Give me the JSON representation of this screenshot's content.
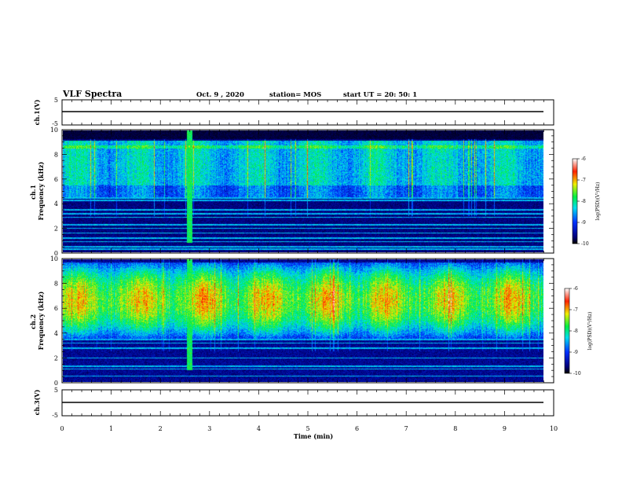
{
  "header": {
    "title": "VLF Spectra",
    "date": "Oct. 9  , 2020",
    "station": "station= MOS",
    "start": "start  UT  =   20: 50: 1"
  },
  "chart_data": [
    {
      "type": "line",
      "panel": "ch1-waveform",
      "ylabel": "ch.1(V)",
      "ylim": [
        -5,
        5
      ],
      "yticks": [
        "5",
        "-5"
      ],
      "x": [
        0,
        9.8
      ],
      "y": [
        0,
        0
      ],
      "xlim": [
        0,
        10
      ]
    },
    {
      "type": "heatmap",
      "panel": "ch1-spectrogram",
      "ylabel": "ch.1\nFrequency (kHz)",
      "ylim": [
        0,
        10
      ],
      "yticks": [
        "0",
        "2",
        "4",
        "6",
        "8",
        "10"
      ],
      "xlim": [
        0,
        10
      ],
      "data_xrange": [
        0,
        9.8
      ],
      "colorbar": {
        "label": "log(PSD)(V²/Hz)",
        "range": [
          -10,
          -6
        ],
        "ticks": [
          "-6",
          "-7",
          "-8",
          "-9",
          "-10"
        ]
      },
      "features": {
        "emission_band_khz": [
          4.5,
          9.2
        ],
        "band_ceiling_khz": 8.7,
        "burst_time_min": 2.58,
        "burst_band_khz": [
          0.8,
          10
        ],
        "transmitter_lines_khz": [
          0.3,
          0.5,
          0.9,
          1.2,
          1.6,
          2.0,
          2.3,
          2.9,
          3.2,
          3.5,
          4.3,
          4.5
        ]
      }
    },
    {
      "type": "heatmap",
      "panel": "ch2-spectrogram",
      "ylabel": "ch.2\nFrequency (kHz)",
      "ylim": [
        0,
        10
      ],
      "yticks": [
        "0",
        "2",
        "4",
        "6",
        "8",
        "10"
      ],
      "xlim": [
        0,
        10
      ],
      "data_xrange": [
        0,
        9.8
      ],
      "colorbar": {
        "label": "log(PSD)(V²/Hz)",
        "range": [
          -10,
          -6
        ],
        "ticks": [
          "-6",
          "-7",
          "-8",
          "-9",
          "-10"
        ]
      },
      "features": {
        "emission_band_khz": [
          3.5,
          9.8
        ],
        "peak_khz": 6.7,
        "burst_time_min": 2.58,
        "burst_band_khz": [
          1.0,
          10
        ],
        "transmitter_lines_khz": [
          0.5,
          1.1,
          1.3,
          2.0,
          2.8,
          3.2,
          3.5
        ]
      }
    },
    {
      "type": "line",
      "panel": "ch3-waveform",
      "ylabel": "ch.3(V)",
      "ylim": [
        -5,
        5
      ],
      "yticks": [
        "5",
        "-5"
      ],
      "x": [
        0,
        9.8
      ],
      "y": [
        0,
        0
      ],
      "xlim": [
        0,
        10
      ]
    }
  ],
  "xaxis": {
    "label": "Time (min)",
    "ticks": [
      "0",
      "1",
      "2",
      "3",
      "4",
      "5",
      "6",
      "7",
      "8",
      "9",
      "10"
    ]
  }
}
